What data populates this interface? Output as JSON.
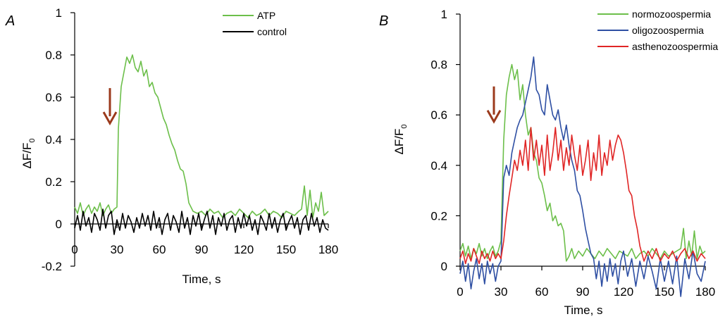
{
  "chart_data": [
    {
      "type": "line",
      "panel_label": "A",
      "xlabel": "Time, s",
      "ylabel": "ΔF/F",
      "ylabel_subscript": "0",
      "xlim": [
        0,
        180
      ],
      "ylim": [
        -0.2,
        1
      ],
      "xticks": [
        0,
        30,
        60,
        90,
        120,
        150,
        180
      ],
      "yticks": [
        -0.2,
        0,
        0.2,
        0.4,
        0.6,
        0.8,
        1
      ],
      "ytick_labels": [
        "-0.2",
        "0",
        "0.2",
        "0.4",
        "0.6",
        "0.8",
        "1"
      ],
      "legend_position": "top-right",
      "stimulus_time": 30,
      "arrow_color": "#9b3a1c",
      "grid": false,
      "series": [
        {
          "name": "ATP",
          "color": "#6cbf4a",
          "x": [
            0,
            2,
            4,
            6,
            8,
            10,
            12,
            14,
            16,
            18,
            20,
            22,
            24,
            26,
            28,
            30,
            31,
            33,
            35,
            37,
            39,
            41,
            43,
            45,
            47,
            49,
            51,
            53,
            55,
            57,
            59,
            61,
            63,
            65,
            67,
            69,
            71,
            73,
            75,
            77,
            79,
            81,
            84,
            87,
            90,
            93,
            96,
            99,
            102,
            105,
            108,
            111,
            114,
            117,
            120,
            123,
            126,
            129,
            132,
            135,
            138,
            141,
            144,
            147,
            150,
            153,
            156,
            159,
            161,
            163,
            165,
            167,
            169,
            171,
            173,
            175,
            177,
            180
          ],
          "y": [
            0.08,
            0.05,
            0.1,
            0.04,
            0.07,
            0.09,
            0.05,
            0.08,
            0.06,
            0.1,
            0.04,
            0.07,
            0.09,
            0.05,
            0.07,
            0.08,
            0.45,
            0.65,
            0.72,
            0.79,
            0.76,
            0.8,
            0.74,
            0.72,
            0.77,
            0.7,
            0.73,
            0.65,
            0.67,
            0.62,
            0.6,
            0.55,
            0.5,
            0.47,
            0.42,
            0.38,
            0.35,
            0.3,
            0.26,
            0.25,
            0.19,
            0.1,
            0.06,
            0.05,
            0.06,
            0.04,
            0.07,
            0.05,
            0.06,
            0.03,
            0.05,
            0.06,
            0.04,
            0.07,
            0.05,
            0.03,
            0.06,
            0.04,
            0.05,
            0.07,
            0.04,
            0.06,
            0.05,
            0.03,
            0.06,
            0.05,
            0.04,
            0.06,
            0.07,
            0.18,
            0.04,
            0.16,
            0.03,
            0.1,
            0.06,
            0.15,
            0.04,
            0.06
          ]
        },
        {
          "name": "control",
          "color": "#000000",
          "x": [
            0,
            2,
            4,
            6,
            8,
            10,
            12,
            14,
            16,
            18,
            20,
            22,
            24,
            26,
            28,
            30,
            32,
            34,
            36,
            38,
            40,
            42,
            44,
            46,
            48,
            50,
            52,
            54,
            56,
            58,
            60,
            62,
            64,
            66,
            68,
            70,
            72,
            74,
            76,
            78,
            80,
            82,
            84,
            86,
            88,
            90,
            92,
            94,
            96,
            98,
            100,
            102,
            104,
            106,
            108,
            110,
            112,
            114,
            116,
            118,
            120,
            122,
            124,
            126,
            128,
            130,
            132,
            134,
            136,
            138,
            140,
            142,
            144,
            146,
            148,
            150,
            152,
            154,
            156,
            158,
            160,
            162,
            164,
            166,
            168,
            170,
            172,
            174,
            176,
            178,
            180
          ],
          "y": [
            -0.02,
            0.04,
            -0.03,
            0.06,
            -0.01,
            0.03,
            -0.04,
            0.05,
            0.02,
            -0.03,
            0.07,
            -0.02,
            0.04,
            0.06,
            -0.05,
            0.02,
            -0.03,
            0.05,
            -0.02,
            0.04,
            0.01,
            -0.04,
            0.03,
            -0.02,
            0.05,
            -0.01,
            0.04,
            -0.03,
            0.06,
            -0.02,
            0.03,
            -0.05,
            0.02,
            0.05,
            -0.03,
            0.04,
            0.01,
            -0.04,
            0.06,
            -0.02,
            0.03,
            -0.05,
            0.04,
            -0.01,
            0.05,
            -0.03,
            0.02,
            0.06,
            -0.02,
            0.04,
            -0.05,
            0.03,
            -0.01,
            0.05,
            -0.03,
            0.02,
            0.04,
            -0.04,
            0.03,
            -0.02,
            0.05,
            -0.01,
            0.04,
            -0.03,
            0.02,
            -0.05,
            0.04,
            0.01,
            -0.03,
            0.05,
            -0.02,
            0.03,
            -0.04,
            0.02,
            0.05,
            -0.03,
            0.01,
            0.04,
            -0.02,
            0.03,
            -0.05,
            0.02,
            0.04,
            -0.03,
            0.05,
            -0.01,
            0.03,
            -0.04,
            0.02,
            -0.02,
            -0.03
          ]
        }
      ]
    },
    {
      "type": "line",
      "panel_label": "B",
      "xlabel": "Time, s",
      "ylabel": "ΔF/F",
      "ylabel_subscript": "0",
      "xlim": [
        0,
        180
      ],
      "ylim": [
        0,
        1
      ],
      "xticks": [
        0,
        30,
        60,
        90,
        120,
        150,
        180
      ],
      "yticks": [
        0,
        0.2,
        0.4,
        0.6,
        0.8,
        1
      ],
      "ytick_labels": [
        "0",
        "0.2",
        "0.4",
        "0.6",
        "0.8",
        "1"
      ],
      "legend_position": "top-right",
      "stimulus_time": 30,
      "arrow_color": "#9b3a1c",
      "grid": false,
      "series": [
        {
          "name": "normozoospermia",
          "color": "#6cbf4a",
          "x": [
            0,
            2,
            4,
            6,
            8,
            10,
            12,
            14,
            16,
            18,
            20,
            22,
            24,
            26,
            28,
            30,
            32,
            34,
            36,
            38,
            40,
            42,
            44,
            46,
            48,
            50,
            52,
            54,
            56,
            58,
            60,
            62,
            64,
            66,
            68,
            70,
            72,
            74,
            76,
            78,
            80,
            82,
            84,
            87,
            90,
            93,
            96,
            99,
            102,
            105,
            108,
            111,
            114,
            117,
            120,
            123,
            126,
            129,
            132,
            135,
            138,
            141,
            144,
            147,
            150,
            153,
            156,
            159,
            162,
            164,
            166,
            168,
            170,
            172,
            174,
            176,
            178,
            180
          ],
          "y": [
            0.06,
            0.09,
            0.04,
            0.08,
            0.03,
            0.07,
            0.05,
            0.09,
            0.04,
            0.07,
            0.03,
            0.06,
            0.08,
            0.04,
            0.06,
            0.1,
            0.5,
            0.68,
            0.75,
            0.8,
            0.74,
            0.78,
            0.66,
            0.72,
            0.6,
            0.52,
            0.55,
            0.45,
            0.42,
            0.35,
            0.33,
            0.28,
            0.22,
            0.25,
            0.18,
            0.2,
            0.16,
            0.17,
            0.14,
            0.02,
            0.04,
            0.07,
            0.03,
            0.06,
            0.04,
            0.07,
            0.05,
            0.03,
            0.06,
            0.04,
            0.07,
            0.05,
            0.03,
            0.06,
            0.05,
            0.04,
            0.07,
            0.03,
            0.05,
            0.06,
            0.04,
            0.07,
            0.05,
            0.03,
            0.06,
            0.04,
            0.05,
            0.06,
            0.07,
            0.15,
            0.03,
            0.1,
            0.04,
            0.14,
            0.03,
            0.08,
            0.05,
            0.06
          ]
        },
        {
          "name": "oligozoospermia",
          "color": "#2e4fa3",
          "x": [
            0,
            2,
            4,
            6,
            8,
            10,
            12,
            14,
            16,
            18,
            20,
            22,
            24,
            26,
            28,
            30,
            32,
            34,
            36,
            38,
            40,
            42,
            44,
            46,
            48,
            50,
            52,
            54,
            56,
            58,
            60,
            62,
            64,
            66,
            68,
            70,
            72,
            74,
            76,
            78,
            80,
            82,
            84,
            86,
            88,
            90,
            92,
            94,
            96,
            98,
            100,
            102,
            104,
            106,
            108,
            110,
            112,
            114,
            116,
            118,
            120,
            123,
            126,
            129,
            132,
            135,
            138,
            141,
            144,
            147,
            150,
            153,
            156,
            159,
            162,
            165,
            168,
            171,
            174,
            177,
            180
          ],
          "y": [
            -0.03,
            0.02,
            -0.06,
            0.01,
            -0.09,
            -0.02,
            0.03,
            -0.05,
            0.01,
            -0.07,
            0.02,
            -0.03,
            0.01,
            -0.06,
            0.0,
            0.02,
            0.35,
            0.4,
            0.36,
            0.45,
            0.5,
            0.55,
            0.58,
            0.6,
            0.65,
            0.7,
            0.75,
            0.83,
            0.7,
            0.68,
            0.62,
            0.6,
            0.72,
            0.66,
            0.6,
            0.58,
            0.62,
            0.55,
            0.5,
            0.56,
            0.48,
            0.42,
            0.38,
            0.3,
            0.28,
            0.22,
            0.15,
            0.1,
            0.05,
            0.03,
            -0.05,
            0.02,
            -0.08,
            0.01,
            -0.06,
            0.03,
            -0.04,
            0.01,
            -0.07,
            0.02,
            0.06,
            -0.04,
            0.03,
            -0.08,
            0.02,
            -0.05,
            0.04,
            -0.02,
            -0.09,
            0.03,
            -0.06,
            0.02,
            -0.07,
            0.04,
            -0.12,
            0.03,
            -0.05,
            0.06,
            -0.03,
            -0.06,
            0.02
          ]
        },
        {
          "name": "asthenozoospermia",
          "color": "#e02525",
          "x": [
            0,
            2,
            4,
            6,
            8,
            10,
            12,
            14,
            16,
            18,
            20,
            22,
            24,
            26,
            28,
            30,
            32,
            34,
            36,
            38,
            40,
            42,
            44,
            46,
            48,
            50,
            52,
            54,
            56,
            58,
            60,
            62,
            64,
            66,
            68,
            70,
            72,
            74,
            76,
            78,
            80,
            82,
            84,
            86,
            88,
            90,
            92,
            94,
            96,
            98,
            100,
            102,
            104,
            106,
            108,
            110,
            112,
            114,
            116,
            118,
            120,
            122,
            124,
            126,
            128,
            130,
            132,
            135,
            138,
            141,
            144,
            147,
            150,
            153,
            156,
            159,
            162,
            165,
            168,
            171,
            174,
            177,
            180
          ],
          "y": [
            0.03,
            0.06,
            0.01,
            0.05,
            0.02,
            0.07,
            0.04,
            0.01,
            0.06,
            0.03,
            0.05,
            0.02,
            0.06,
            0.03,
            0.05,
            0.03,
            0.1,
            0.2,
            0.28,
            0.35,
            0.42,
            0.38,
            0.46,
            0.4,
            0.5,
            0.38,
            0.55,
            0.42,
            0.5,
            0.4,
            0.48,
            0.36,
            0.52,
            0.38,
            0.45,
            0.55,
            0.42,
            0.5,
            0.38,
            0.47,
            0.4,
            0.52,
            0.44,
            0.38,
            0.48,
            0.36,
            0.42,
            0.5,
            0.34,
            0.45,
            0.38,
            0.52,
            0.36,
            0.45,
            0.4,
            0.5,
            0.42,
            0.48,
            0.52,
            0.5,
            0.45,
            0.38,
            0.3,
            0.28,
            0.2,
            0.15,
            0.08,
            0.02,
            0.06,
            0.03,
            0.07,
            0.02,
            0.05,
            0.03,
            0.06,
            0.02,
            0.05,
            0.07,
            0.03,
            0.06,
            0.02,
            0.05,
            0.03
          ]
        }
      ]
    }
  ]
}
